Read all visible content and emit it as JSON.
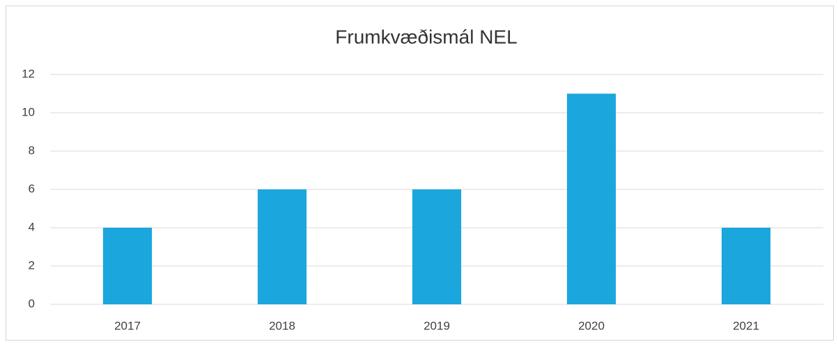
{
  "chart_data": {
    "type": "bar",
    "title": "Frumkvæðismál NEL",
    "categories": [
      "2017",
      "2018",
      "2019",
      "2020",
      "2021"
    ],
    "values": [
      4,
      6,
      6,
      11,
      4
    ],
    "color": "#1ba6dd",
    "ylim": [
      0,
      12
    ],
    "yticks": [
      0,
      2,
      4,
      6,
      8,
      10,
      12
    ],
    "grid": true
  }
}
